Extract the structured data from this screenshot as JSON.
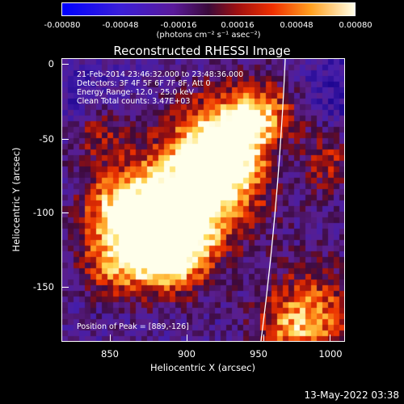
{
  "colorbar": {
    "ticks": [
      "-0.00080",
      "-0.00048",
      "-0.00016",
      "0.00016",
      "0.00048",
      "0.00080"
    ],
    "units": "(photons cm⁻² s⁻¹ asec⁻²)"
  },
  "plot": {
    "title": "Reconstructed RHESSI Image",
    "info_lines": [
      "21-Feb-2014 23:46:32.000 to 23:48:36.000",
      "Detectors: 3F 4F 5F 6F 7F 8F, Att 0",
      "Energy Range: 12.0 - 25.0 keV",
      "Clean    Total counts: 3.47E+03"
    ],
    "peak_label": "Position of Peak = [889,-126]",
    "xlabel": "Heliocentric X (arcsec)",
    "ylabel": "Heliocentric Y (arcsec)",
    "xticks": [
      "850",
      "900",
      "950",
      "1000"
    ],
    "yticks": [
      "0",
      "-50",
      "-100",
      "-150"
    ]
  },
  "footer": {
    "timestamp": "13-May-2022 03:38"
  }
}
